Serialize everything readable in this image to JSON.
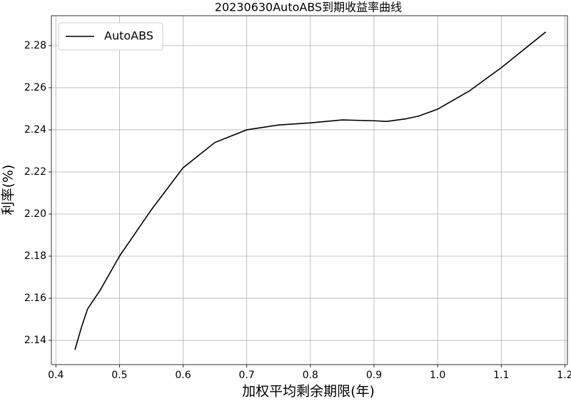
{
  "chart_data": {
    "type": "line",
    "title": "20230630AutoABS到期收益率曲线",
    "x_label": "加权平均剩余期限(年)",
    "y_label": "利率(%)",
    "x": [
      0.43,
      0.44,
      0.45,
      0.47,
      0.5,
      0.55,
      0.6,
      0.65,
      0.7,
      0.75,
      0.8,
      0.85,
      0.9,
      0.92,
      0.95,
      0.97,
      1.0,
      1.05,
      1.1,
      1.17
    ],
    "series": [
      {
        "name": "AutoABS",
        "color": "#000000",
        "values": [
          2.1355,
          2.146,
          2.155,
          2.164,
          2.18,
          2.202,
          2.222,
          2.234,
          2.24,
          2.2423,
          2.2433,
          2.2447,
          2.2443,
          2.244,
          2.2452,
          2.2465,
          2.2498,
          2.2585,
          2.2695,
          2.2865
        ]
      }
    ],
    "xlim": [
      0.393,
      1.204
    ],
    "ylim": [
      2.1285,
      2.2942
    ],
    "xticks": [
      0.4,
      0.5,
      0.6,
      0.7,
      0.8,
      0.9,
      {
        "value": 1,
        "label": "1.0"
      },
      1.1,
      1.2
    ],
    "yticks": [
      2.14,
      2.16,
      2.18,
      {
        "value": 2.2,
        "label": "2.20"
      },
      2.22,
      2.24,
      2.26,
      2.28
    ],
    "grid": true,
    "legend": "upper-left"
  }
}
